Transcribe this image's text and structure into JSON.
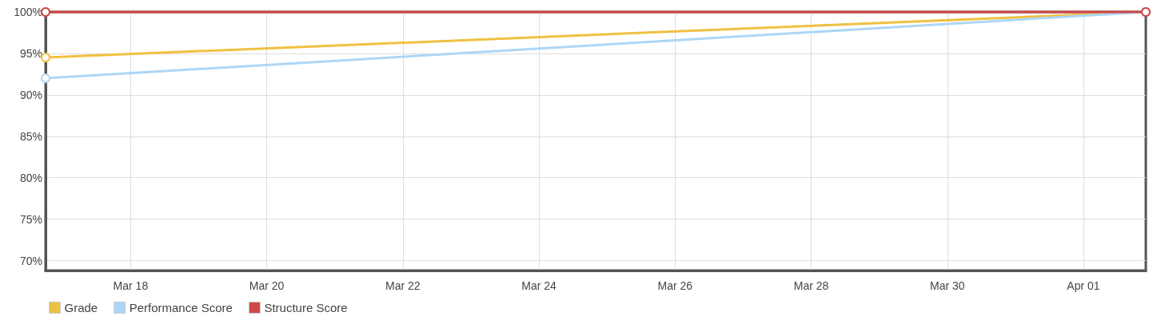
{
  "chart_data": {
    "type": "line",
    "x": [
      "--03-16T18:00",
      "--04-01T22:00"
    ],
    "series": [
      {
        "name": "Grade",
        "color": "#f0c040",
        "values": [
          94.5,
          100
        ]
      },
      {
        "name": "Performance Score",
        "color": "#acd6f7",
        "values": [
          92,
          100
        ]
      },
      {
        "name": "Structure Score",
        "color": "#d04848",
        "values": [
          100,
          100
        ]
      }
    ],
    "xlim": [
      "--03-16T18:00",
      "--04-01T22:00"
    ],
    "xticks": [
      {
        "value": "--03-18",
        "label": "Mar 18"
      },
      {
        "value": "--03-20",
        "label": "Mar 20"
      },
      {
        "value": "--03-22",
        "label": "Mar 22"
      },
      {
        "value": "--03-24",
        "label": "Mar 24"
      },
      {
        "value": "--03-26",
        "label": "Mar 26"
      },
      {
        "value": "--03-28",
        "label": "Mar 28"
      },
      {
        "value": "--03-30",
        "label": "Mar 30"
      },
      {
        "value": "--04-01",
        "label": "Apr 01"
      }
    ],
    "ylim": [
      68.8,
      100
    ],
    "yticks": [
      {
        "value": 70,
        "label": "70%"
      },
      {
        "value": 75,
        "label": "75%"
      },
      {
        "value": 80,
        "label": "80%"
      },
      {
        "value": 85,
        "label": "85%"
      },
      {
        "value": 90,
        "label": "90%"
      },
      {
        "value": 95,
        "label": "95%"
      },
      {
        "value": 100,
        "label": "100%"
      }
    ],
    "grid": true,
    "legend": "bottom left",
    "marker": "circle",
    "line_style": "solid"
  }
}
